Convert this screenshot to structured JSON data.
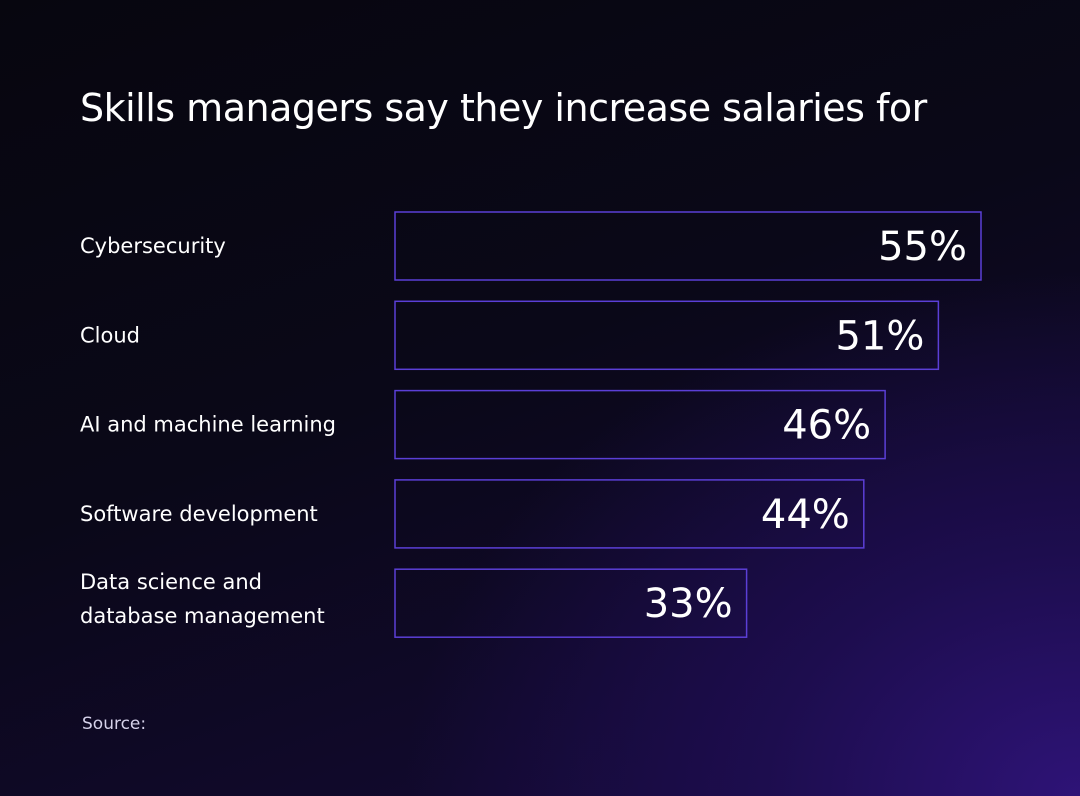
{
  "chart_data": {
    "type": "bar",
    "orientation": "horizontal",
    "title": "Skills managers say they increase salaries for",
    "categories": [
      [
        "Cybersecurity"
      ],
      [
        "Cloud"
      ],
      [
        "AI and machine learning"
      ],
      [
        "Software development"
      ],
      [
        "Data science and",
        "database management"
      ]
    ],
    "values": [
      55,
      51,
      46,
      44,
      33
    ],
    "value_labels": [
      "55%",
      "51%",
      "46%",
      "44%",
      "33%"
    ],
    "unit": "%",
    "xlim": [
      0,
      55
    ],
    "colors": {
      "bar_outline": "#5b3fd6",
      "text": "#ffffff"
    }
  },
  "footer": {
    "source_label": "Source:"
  }
}
